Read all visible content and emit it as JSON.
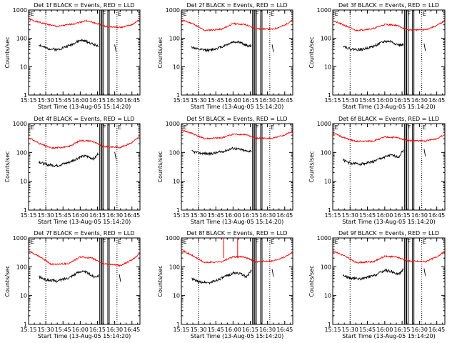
{
  "chart_data": [
    {
      "type": "line",
      "title": "Det 1f BLACK = Events, RED = LLD",
      "xlabel": "Start Time (13-Aug-05 15:14:20)",
      "ylabel": "Counts/sec",
      "yscale": "log",
      "ylim": [
        1,
        1000
      ],
      "xlim": [
        "15:15",
        "16:52"
      ],
      "x_ticks": [
        "15:15",
        "15:30",
        "15:45",
        "16:00",
        "16:15",
        "16:30",
        "16:45"
      ],
      "y_ticks": [
        "1",
        "10",
        "100",
        "1000"
      ],
      "markers": [
        {
          "label": "E",
          "x": "15:16"
        },
        {
          "label": "F",
          "x": "16:19"
        },
        {
          "label": "E",
          "x": "16:32"
        }
      ],
      "dotted_lines": [
        "15:30",
        "16:32"
      ],
      "solid_lines": [
        "16:17",
        "16:19",
        "16:24"
      ],
      "series": [
        {
          "color": "#ff0000",
          "x": [
            "15:15",
            "15:25",
            "15:40",
            "15:55",
            "16:05",
            "16:15",
            "16:20",
            "16:35",
            "16:45",
            "16:52"
          ],
          "values": [
            480,
            360,
            260,
            330,
            420,
            330,
            270,
            240,
            300,
            470
          ],
          "stop": null
        },
        {
          "color": "#000000",
          "x": [
            "15:24",
            "15:30",
            "15:40",
            "15:50",
            "16:00",
            "16:05",
            "16:12",
            "16:16"
          ],
          "values": [
            60,
            45,
            40,
            55,
            85,
            80,
            60,
            55
          ],
          "stop": "16:30"
        }
      ]
    },
    {
      "type": "line",
      "title": "Det 2f BLACK = Events, RED = LLD",
      "xlabel": "Start Time (13-Aug-05 15:14:20)",
      "ylabel": "Counts/sec",
      "yscale": "log",
      "ylim": [
        1,
        1000
      ],
      "xlim": [
        "15:15",
        "16:52"
      ],
      "x_ticks": [
        "15:15",
        "15:30",
        "15:45",
        "16:00",
        "16:15",
        "16:30",
        "16:45"
      ],
      "y_ticks": [
        "1",
        "10",
        "100",
        "1000"
      ],
      "markers": [
        {
          "label": "E",
          "x": "15:16"
        },
        {
          "label": "F",
          "x": "16:19"
        },
        {
          "label": "E",
          "x": "16:32"
        }
      ],
      "dotted_lines": [
        "15:30",
        "16:32"
      ],
      "solid_lines": [
        "16:17",
        "16:19",
        "16:24"
      ],
      "series": [
        {
          "color": "#ff0000",
          "x": [
            "15:15",
            "15:25",
            "15:35",
            "15:50",
            "16:00",
            "16:10",
            "16:20",
            "16:35",
            "16:45",
            "16:52"
          ],
          "values": [
            450,
            330,
            190,
            210,
            330,
            310,
            220,
            210,
            290,
            450
          ],
          "stop": null
        },
        {
          "color": "#000000",
          "x": [
            "15:24",
            "15:30",
            "15:40",
            "15:50",
            "16:00",
            "16:05",
            "16:12",
            "16:16"
          ],
          "values": [
            50,
            40,
            38,
            50,
            75,
            75,
            55,
            55
          ],
          "stop": "16:34"
        }
      ]
    },
    {
      "type": "line",
      "title": "Det 3f BLACK = Events, RED = LLD",
      "xlabel": "Start Time (13-Aug-05 15:14:20)",
      "ylabel": "Counts/sec",
      "yscale": "log",
      "ylim": [
        1,
        1000
      ],
      "xlim": [
        "15:15",
        "16:52"
      ],
      "x_ticks": [
        "15:15",
        "15:30",
        "15:45",
        "16:00",
        "16:15",
        "16:30",
        "16:45"
      ],
      "y_ticks": [
        "1",
        "10",
        "100",
        "1000"
      ],
      "markers": [
        {
          "label": "E",
          "x": "15:16"
        },
        {
          "label": "F",
          "x": "16:19"
        },
        {
          "label": "E",
          "x": "16:32"
        }
      ],
      "dotted_lines": [
        "15:30",
        "16:32"
      ],
      "solid_lines": [
        "16:17",
        "16:19",
        "16:24"
      ],
      "series": [
        {
          "color": "#ff0000",
          "x": [
            "15:15",
            "15:25",
            "15:35",
            "15:50",
            "16:00",
            "16:10",
            "16:20",
            "16:35",
            "16:45",
            "16:52"
          ],
          "values": [
            420,
            290,
            190,
            220,
            310,
            290,
            200,
            200,
            280,
            420
          ],
          "stop": null
        },
        {
          "color": "#000000",
          "x": [
            "15:24",
            "15:30",
            "15:40",
            "15:50",
            "16:00",
            "16:05",
            "16:12",
            "16:16"
          ],
          "values": [
            55,
            42,
            40,
            52,
            78,
            78,
            58,
            60
          ],
          "stop": "16:34"
        }
      ]
    },
    {
      "type": "line",
      "title": "Det 4f BLACK = Events, RED = LLD",
      "xlabel": "Start Time (13-Aug-05 15:14:20)",
      "ylabel": "Counts/sec",
      "yscale": "log",
      "ylim": [
        1,
        1000
      ],
      "xlim": [
        "15:15",
        "16:52"
      ],
      "x_ticks": [
        "15:15",
        "15:30",
        "15:45",
        "16:00",
        "16:15",
        "16:30",
        "16:45"
      ],
      "y_ticks": [
        "1",
        "10",
        "100",
        "1000"
      ],
      "markers": [
        {
          "label": "E",
          "x": "15:16"
        },
        {
          "label": "F",
          "x": "16:19"
        },
        {
          "label": "E",
          "x": "16:32"
        }
      ],
      "dotted_lines": [
        "15:30",
        "16:32"
      ],
      "solid_lines": [
        "16:17",
        "16:19",
        "16:24"
      ],
      "series": [
        {
          "color": "#ff0000",
          "x": [
            "15:15",
            "15:25",
            "15:35",
            "15:50",
            "16:00",
            "16:10",
            "16:20",
            "16:35",
            "16:45",
            "16:52"
          ],
          "values": [
            330,
            200,
            140,
            160,
            260,
            250,
            160,
            150,
            220,
            360
          ],
          "stop": null
        },
        {
          "color": "#000000",
          "x": [
            "15:24",
            "15:30",
            "15:40",
            "15:50",
            "16:00",
            "16:05",
            "16:12",
            "16:16"
          ],
          "values": [
            48,
            38,
            35,
            45,
            70,
            75,
            60,
            95
          ],
          "stop": "16:30"
        }
      ]
    },
    {
      "type": "line",
      "title": "Det 5f BLACK = Events, RED = LLD",
      "xlabel": "Start Time (13-Aug-05 15:14:20)",
      "ylabel": "Counts/sec",
      "yscale": "log",
      "ylim": [
        1,
        1000
      ],
      "xlim": [
        "15:15",
        "16:52"
      ],
      "x_ticks": [
        "15:15",
        "15:30",
        "15:45",
        "16:00",
        "16:15",
        "16:30",
        "16:45"
      ],
      "y_ticks": [
        "1",
        "10",
        "100",
        "1000"
      ],
      "markers": [
        {
          "label": "E",
          "x": "15:16"
        },
        {
          "label": "F",
          "x": "16:19"
        },
        {
          "label": "E",
          "x": "16:32"
        }
      ],
      "dotted_lines": [
        "15:30",
        "16:32"
      ],
      "solid_lines": [
        "16:17",
        "16:19",
        "16:24"
      ],
      "series": [
        {
          "color": "#ff0000",
          "x": [
            "15:15",
            "15:25",
            "15:35",
            "15:50",
            "16:00",
            "16:10",
            "16:20",
            "16:35",
            "16:45",
            "16:52"
          ],
          "values": [
            600,
            450,
            300,
            320,
            430,
            420,
            310,
            310,
            400,
            560
          ],
          "stop": null
        },
        {
          "color": "#000000",
          "x": [
            "15:24",
            "15:30",
            "15:40",
            "15:50",
            "16:00",
            "16:05",
            "16:12",
            "16:16"
          ],
          "values": [
            110,
            95,
            90,
            105,
            140,
            130,
            110,
            115
          ],
          "stop": null
        }
      ]
    },
    {
      "type": "line",
      "title": "Det 6f BLACK = Events, RED = LLD",
      "xlabel": "Start Time (13-Aug-05 15:14:20)",
      "ylabel": "Counts/sec",
      "yscale": "log",
      "ylim": [
        1,
        1000
      ],
      "xlim": [
        "15:15",
        "16:52"
      ],
      "x_ticks": [
        "15:15",
        "15:30",
        "15:45",
        "16:00",
        "16:15",
        "16:30",
        "16:45"
      ],
      "y_ticks": [
        "1",
        "10",
        "100",
        "1000"
      ],
      "markers": [
        {
          "label": "E",
          "x": "15:16"
        },
        {
          "label": "F",
          "x": "16:19"
        },
        {
          "label": "E",
          "x": "16:32"
        }
      ],
      "dotted_lines": [
        "15:30",
        "16:32"
      ],
      "solid_lines": [
        "16:17",
        "16:19",
        "16:24"
      ],
      "series": [
        {
          "color": "#ff0000",
          "x": [
            "15:15",
            "15:25",
            "15:35",
            "15:50",
            "16:00",
            "16:10",
            "16:20",
            "16:35",
            "16:45",
            "16:52"
          ],
          "values": [
            480,
            320,
            240,
            250,
            340,
            330,
            260,
            250,
            300,
            430
          ],
          "stop": null
        },
        {
          "color": "#000000",
          "x": [
            "15:24",
            "15:30",
            "15:40",
            "15:50",
            "16:00",
            "16:05",
            "16:12",
            "16:16"
          ],
          "values": [
            55,
            42,
            40,
            48,
            70,
            80,
            70,
            120
          ],
          "stop": "16:34"
        }
      ]
    },
    {
      "type": "line",
      "title": "Det 7f BLACK = Events, RED = LLD",
      "xlabel": "Start Time (13-Aug-05 15:14:20)",
      "ylabel": "Counts/sec",
      "yscale": "log",
      "ylim": [
        1,
        1000
      ],
      "xlim": [
        "15:15",
        "16:52"
      ],
      "x_ticks": [
        "15:15",
        "15:30",
        "15:45",
        "16:00",
        "16:15",
        "16:30",
        "16:45"
      ],
      "y_ticks": [
        "1",
        "10",
        "100",
        "1000"
      ],
      "markers": [
        {
          "label": "E",
          "x": "15:16"
        },
        {
          "label": "F",
          "x": "16:19"
        },
        {
          "label": "E",
          "x": "16:32"
        }
      ],
      "dotted_lines": [
        "15:30",
        "16:32"
      ],
      "solid_lines": [
        "16:17",
        "16:19",
        "16:24"
      ],
      "series": [
        {
          "color": "#ff0000",
          "x": [
            "15:15",
            "15:25",
            "15:35",
            "15:50",
            "16:00",
            "16:10",
            "16:20",
            "16:35",
            "16:45",
            "16:52"
          ],
          "values": [
            350,
            220,
            120,
            130,
            220,
            200,
            130,
            110,
            170,
            290
          ],
          "stop": null
        },
        {
          "color": "#000000",
          "x": [
            "15:24",
            "15:30",
            "15:40",
            "15:50",
            "16:00",
            "16:05",
            "16:12",
            "16:16"
          ],
          "values": [
            45,
            35,
            32,
            42,
            70,
            65,
            45,
            50
          ],
          "stop": "16:34"
        }
      ]
    },
    {
      "type": "line",
      "title": "Det 8f BLACK = Events, RED = LLD",
      "xlabel": "Start Time (13-Aug-05 15:14:20)",
      "ylabel": "Counts/sec",
      "yscale": "log",
      "ylim": [
        1,
        1000
      ],
      "xlim": [
        "15:15",
        "16:52"
      ],
      "x_ticks": [
        "15:15",
        "15:30",
        "15:45",
        "16:00",
        "16:15",
        "16:30",
        "16:45"
      ],
      "y_ticks": [
        "1",
        "10",
        "100",
        "1000"
      ],
      "markers": [
        {
          "label": "E",
          "x": "15:16"
        },
        {
          "label": "F",
          "x": "16:19"
        },
        {
          "label": "E",
          "x": "16:32"
        }
      ],
      "dotted_lines": [
        "15:30",
        "16:32"
      ],
      "solid_lines": [
        "16:17",
        "16:19",
        "16:24"
      ],
      "spikes": [
        {
          "x": "15:52",
          "value": 1000
        },
        {
          "x": "16:04",
          "value": 1000
        }
      ],
      "series": [
        {
          "color": "#ff0000",
          "x": [
            "15:15",
            "15:25",
            "15:35",
            "15:50",
            "16:00",
            "16:10",
            "16:20",
            "16:35",
            "16:45",
            "16:52"
          ],
          "values": [
            380,
            240,
            140,
            150,
            220,
            220,
            150,
            160,
            220,
            330
          ],
          "stop": null
        },
        {
          "color": "#000000",
          "x": [
            "15:24",
            "15:30",
            "15:40",
            "15:50",
            "16:00",
            "16:05",
            "16:12",
            "16:16"
          ],
          "values": [
            38,
            30,
            28,
            40,
            60,
            60,
            45,
            75
          ],
          "stop": "16:34"
        }
      ]
    },
    {
      "type": "line",
      "title": "Det 9f BLACK = Events, RED = LLD",
      "xlabel": "Start Time (13-Aug-05 15:14:20)",
      "ylabel": "Counts/sec",
      "yscale": "log",
      "ylim": [
        1,
        1000
      ],
      "xlim": [
        "15:15",
        "16:52"
      ],
      "x_ticks": [
        "15:15",
        "15:30",
        "15:45",
        "16:00",
        "16:15",
        "16:30",
        "16:45"
      ],
      "y_ticks": [
        "1",
        "10",
        "100",
        "1000"
      ],
      "markers": [
        {
          "label": "E",
          "x": "15:16"
        },
        {
          "label": "F",
          "x": "16:19"
        },
        {
          "label": "E",
          "x": "16:32"
        }
      ],
      "dotted_lines": [
        "15:30",
        "16:32"
      ],
      "solid_lines": [
        "16:17",
        "16:19",
        "16:24"
      ],
      "series": [
        {
          "color": "#ff0000",
          "x": [
            "15:15",
            "15:25",
            "15:35",
            "15:50",
            "16:00",
            "16:10",
            "16:20",
            "16:35",
            "16:45",
            "16:52"
          ],
          "values": [
            360,
            240,
            140,
            150,
            230,
            220,
            160,
            150,
            220,
            340
          ],
          "stop": null
        },
        {
          "color": "#000000",
          "x": [
            "15:24",
            "15:30",
            "15:40",
            "15:50",
            "16:00",
            "16:05",
            "16:12",
            "16:16"
          ],
          "values": [
            50,
            40,
            38,
            48,
            75,
            70,
            55,
            80
          ],
          "stop": "16:34"
        }
      ]
    }
  ]
}
